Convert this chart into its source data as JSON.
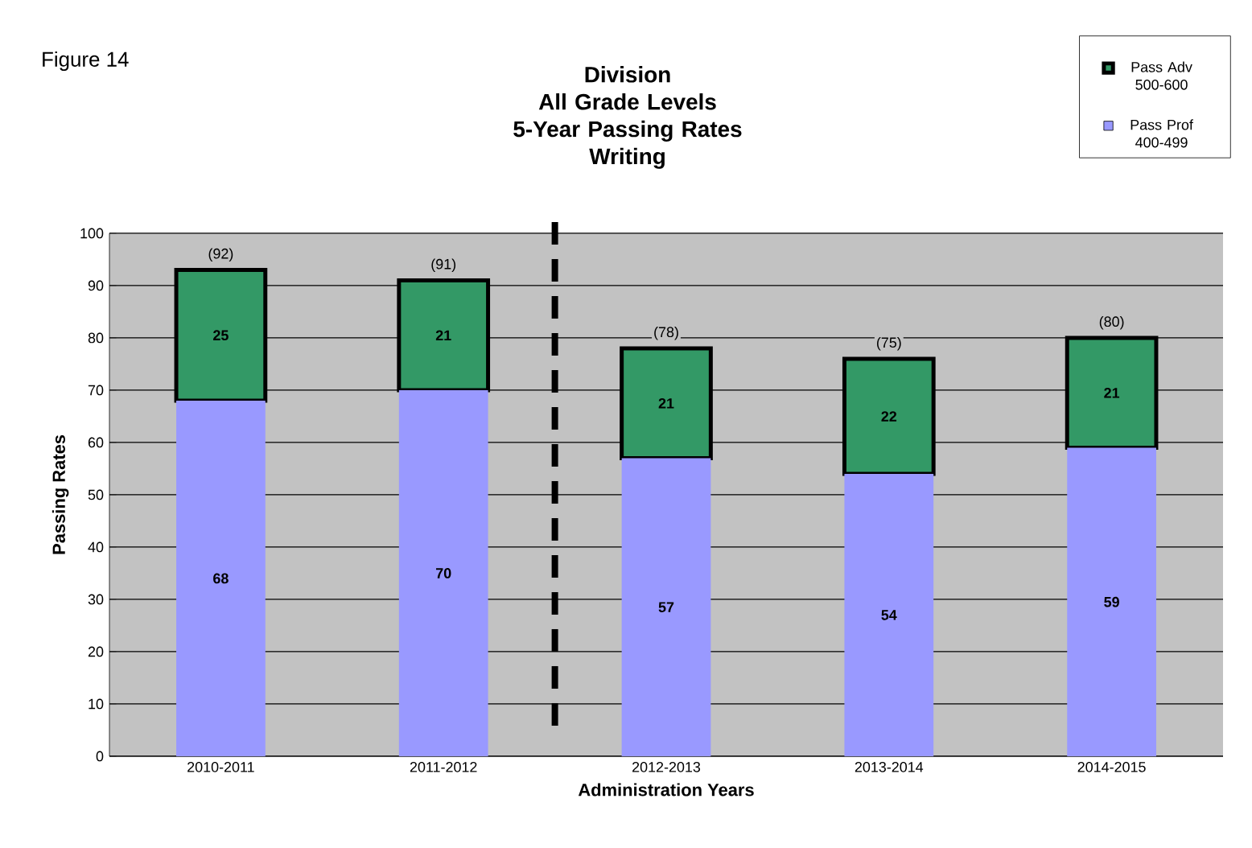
{
  "chart_data": {
    "type": "bar",
    "stacked": true,
    "title": "Division All Grade Levels 5-Year Passing Rates Writing",
    "annotations": [
      "Figure 14"
    ],
    "xlabel": "Administration Years",
    "ylabel": "Passing Rates",
    "categories": [
      "2010-2011",
      "2011-2012",
      "2012-2013",
      "2013-2014",
      "2014-2015"
    ],
    "series": [
      {
        "name": "Pass Prof 400-499",
        "color": "#9999ff",
        "values": [
          68,
          70,
          57,
          54,
          59
        ]
      },
      {
        "name": "Pass Adv 500-600",
        "color": "#339966",
        "values": [
          25,
          21,
          21,
          22,
          21
        ]
      }
    ],
    "totals": [
      "(92)",
      "(91)",
      "(78)",
      "(75)",
      "(80)"
    ],
    "data_labels": true,
    "ylim": [
      0,
      100
    ],
    "yticks": [
      0,
      10,
      20,
      30,
      40,
      50,
      60,
      70,
      80,
      90,
      100
    ],
    "grid": "y",
    "legend": "top right"
  }
}
